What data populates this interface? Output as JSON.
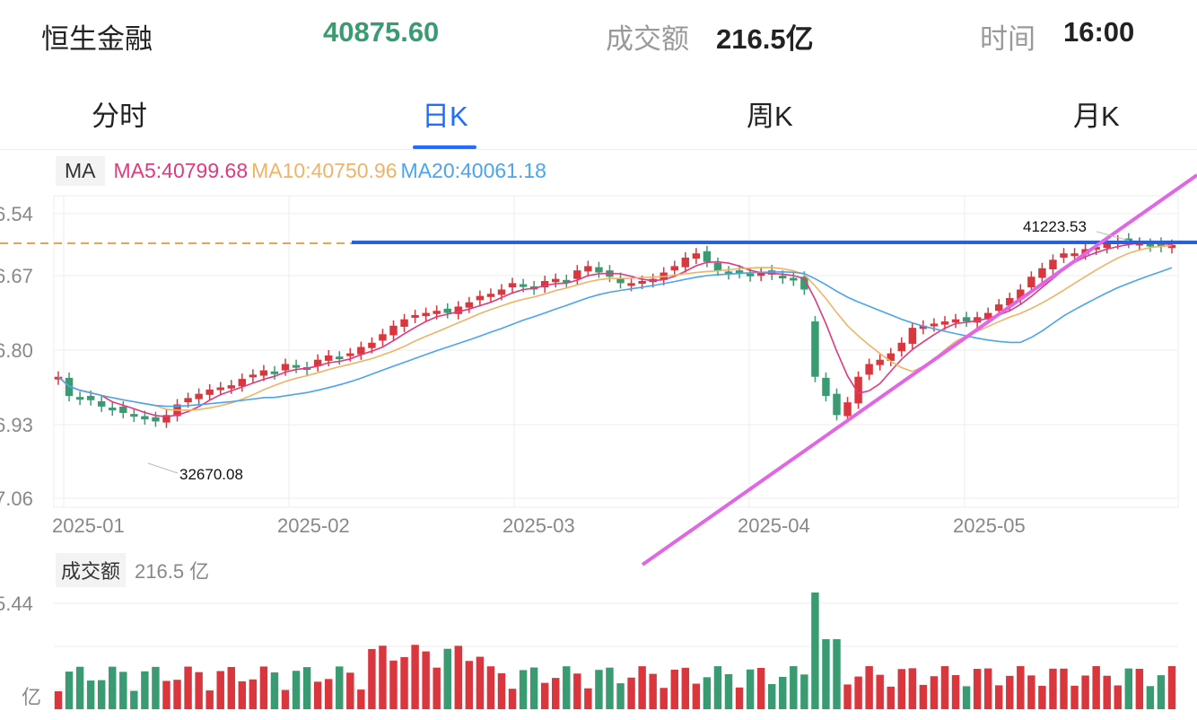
{
  "header": {
    "name": "恒生金融",
    "price": "40875.60",
    "turnover_label": "成交额",
    "turnover_value": "216.5亿",
    "time_label": "时间",
    "time_value": "16:00",
    "colors": {
      "price": "#3a9b72",
      "label": "#999999"
    }
  },
  "tabs": [
    {
      "label": "分时",
      "active": false
    },
    {
      "label": "日K",
      "active": true
    },
    {
      "label": "周K",
      "active": false
    },
    {
      "label": "月K",
      "active": false
    }
  ],
  "ma_legend": {
    "tag": "MA",
    "ma5": "MA5:40799.68",
    "ma10": "MA10:40750.96",
    "ma20": "MA20:40061.18",
    "colors": {
      "ma5": "#e2397e",
      "ma10": "#f0b366",
      "ma20": "#4aa4f0"
    }
  },
  "volume_legend": {
    "tag": "成交额",
    "value": "216.5 亿"
  },
  "colors": {
    "up": "#d9363e",
    "down": "#3a9b72",
    "hline": "#2a5fe0",
    "trendline": "#e066e6",
    "dashed": "#f0a050"
  },
  "chart_data": {
    "type": "candlestick",
    "price_axis_ticks": [
      "6.54",
      "6.67",
      "6.80",
      "6.93",
      "7.06"
    ],
    "x_ticks": [
      "2025-01",
      "2025-02",
      "2025-03",
      "2025-04",
      "2025-05"
    ],
    "annotations": {
      "high": "41223.53",
      "low": "32670.08"
    },
    "volume_axis_ticks": [
      "5.44",
      "亿"
    ],
    "candles_close_norm": [
      0.36,
      0.27,
      0.26,
      0.25,
      0.22,
      0.21,
      0.19,
      0.18,
      0.16,
      0.15,
      0.18,
      0.23,
      0.26,
      0.28,
      0.3,
      0.31,
      0.32,
      0.35,
      0.37,
      0.39,
      0.38,
      0.42,
      0.41,
      0.4,
      0.44,
      0.46,
      0.45,
      0.47,
      0.5,
      0.52,
      0.56,
      0.6,
      0.63,
      0.65,
      0.66,
      0.67,
      0.66,
      0.69,
      0.71,
      0.74,
      0.75,
      0.77,
      0.8,
      0.79,
      0.77,
      0.81,
      0.82,
      0.81,
      0.86,
      0.88,
      0.85,
      0.83,
      0.8,
      0.8,
      0.81,
      0.82,
      0.85,
      0.88,
      0.92,
      0.94,
      0.9,
      0.86,
      0.85,
      0.85,
      0.84,
      0.85,
      0.84,
      0.83,
      0.82,
      0.77,
      0.36,
      0.27,
      0.18,
      0.24,
      0.36,
      0.42,
      0.44,
      0.47,
      0.52,
      0.59,
      0.6,
      0.61,
      0.62,
      0.63,
      0.62,
      0.64,
      0.66,
      0.7,
      0.73,
      0.77,
      0.83,
      0.87,
      0.91,
      0.94,
      0.94,
      0.96,
      0.97,
      0.99,
      1.0,
      0.99,
      0.99,
      0.98,
      0.97,
      0.98
    ]
  }
}
